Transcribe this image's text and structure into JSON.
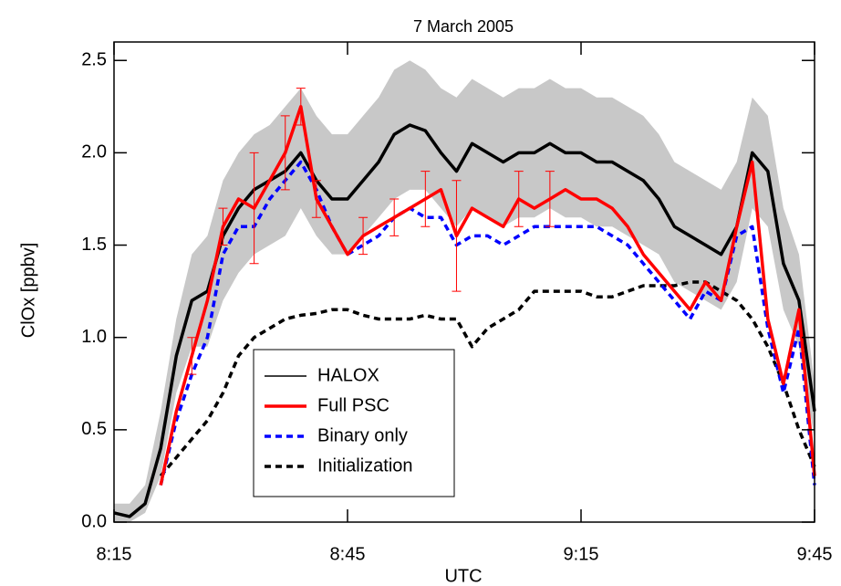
{
  "chart_data": {
    "type": "line",
    "title": "7 March 2005",
    "x_label": "UTC",
    "y_label": "ClOx [ppbv]",
    "x": [
      495,
      497,
      499,
      501,
      503,
      505,
      507,
      509,
      511,
      513,
      515,
      517,
      519,
      521,
      523,
      525,
      527,
      529,
      531,
      533,
      535,
      537,
      539,
      541,
      543,
      545,
      547,
      549,
      551,
      553,
      555,
      557,
      559,
      561,
      563,
      565,
      567,
      569,
      571,
      573,
      575,
      577,
      579,
      581,
      583,
      585
    ],
    "xlim": [
      495,
      585
    ],
    "xticks": [
      {
        "value": 495,
        "label": "8:15"
      },
      {
        "value": 525,
        "label": "8:45"
      },
      {
        "value": 555,
        "label": "9:15"
      },
      {
        "value": 585,
        "label": "9:45"
      }
    ],
    "ylim": [
      0,
      2.6
    ],
    "yticks": [
      {
        "value": 0,
        "label": "0.0"
      },
      0.5,
      {
        "value": 1,
        "label": "1.0"
      },
      1.5,
      {
        "value": 2,
        "label": "2.0"
      },
      2.5
    ],
    "band": {
      "color": "#c8c8c8",
      "upper": [
        0.1,
        0.1,
        0.2,
        0.6,
        1.1,
        1.45,
        1.55,
        1.85,
        2.0,
        2.1,
        2.15,
        2.25,
        2.35,
        2.2,
        2.1,
        2.1,
        2.2,
        2.3,
        2.45,
        2.5,
        2.45,
        2.35,
        2.3,
        2.4,
        2.35,
        2.3,
        2.35,
        2.35,
        2.4,
        2.35,
        2.35,
        2.3,
        2.3,
        2.25,
        2.2,
        2.1,
        1.95,
        1.9,
        1.85,
        1.8,
        1.95,
        2.3,
        2.2,
        1.7,
        1.45,
        0.75
      ],
      "lower": [
        0,
        0,
        0.05,
        0.25,
        0.7,
        0.95,
        0.95,
        1.2,
        1.35,
        1.45,
        1.5,
        1.55,
        1.7,
        1.55,
        1.45,
        1.45,
        1.55,
        1.65,
        1.75,
        1.8,
        1.8,
        1.7,
        1.6,
        1.7,
        1.65,
        1.6,
        1.65,
        1.65,
        1.7,
        1.65,
        1.65,
        1.6,
        1.6,
        1.55,
        1.5,
        1.45,
        1.3,
        1.25,
        1.2,
        1.15,
        1.3,
        1.7,
        1.6,
        1.15,
        0.95,
        0.45
      ]
    },
    "series": [
      {
        "name": "HALOX",
        "color": "#000000",
        "dash": false,
        "values": [
          0.05,
          0.03,
          0.1,
          0.4,
          0.9,
          1.2,
          1.25,
          1.55,
          1.7,
          1.8,
          1.85,
          1.9,
          2.0,
          1.85,
          1.75,
          1.75,
          1.85,
          1.95,
          2.1,
          2.15,
          2.12,
          2.0,
          1.9,
          2.05,
          2.0,
          1.95,
          2.0,
          2.0,
          2.05,
          2.0,
          2.0,
          1.95,
          1.95,
          1.9,
          1.85,
          1.75,
          1.6,
          1.55,
          1.5,
          1.45,
          1.6,
          2.0,
          1.9,
          1.4,
          1.2,
          0.6
        ]
      },
      {
        "name": "Full PSC",
        "color": "#ff0000",
        "dash": false,
        "values": [
          null,
          null,
          null,
          0.2,
          0.6,
          0.9,
          1.2,
          1.6,
          1.75,
          1.7,
          1.85,
          2.0,
          2.25,
          1.75,
          1.6,
          1.45,
          1.55,
          1.6,
          1.65,
          1.7,
          1.75,
          1.8,
          1.55,
          1.7,
          1.65,
          1.6,
          1.75,
          1.7,
          1.75,
          1.8,
          1.75,
          1.75,
          1.7,
          1.6,
          1.45,
          1.35,
          1.25,
          1.15,
          1.3,
          1.2,
          1.6,
          1.95,
          1.1,
          0.75,
          1.15,
          0.25
        ],
        "errors": [
          null,
          null,
          null,
          null,
          null,
          0.1,
          null,
          0.1,
          null,
          0.3,
          null,
          0.2,
          0.1,
          0.1,
          null,
          null,
          0.1,
          null,
          0.1,
          null,
          0.15,
          null,
          0.3,
          null,
          null,
          null,
          0.15,
          null,
          0.15,
          null,
          null,
          null,
          null,
          null,
          null,
          null,
          null,
          null,
          null,
          null,
          null,
          null,
          null,
          null,
          null,
          null
        ]
      },
      {
        "name": "Binary only",
        "color": "#0000ff",
        "dash": true,
        "values": [
          null,
          null,
          null,
          0.2,
          0.55,
          0.8,
          1.0,
          1.45,
          1.6,
          1.6,
          1.75,
          1.85,
          1.95,
          1.8,
          1.6,
          1.45,
          1.5,
          1.55,
          1.65,
          1.7,
          1.65,
          1.65,
          1.5,
          1.55,
          1.55,
          1.5,
          1.55,
          1.6,
          1.6,
          1.6,
          1.6,
          1.6,
          1.55,
          1.5,
          1.4,
          1.3,
          1.2,
          1.1,
          1.25,
          1.2,
          1.55,
          1.6,
          1.05,
          0.7,
          1.05,
          0.2
        ]
      },
      {
        "name": "Initialization",
        "color": "#000000",
        "dash": true,
        "values": [
          null,
          null,
          null,
          0.25,
          0.35,
          0.45,
          0.55,
          0.7,
          0.9,
          1.0,
          1.05,
          1.1,
          1.12,
          1.13,
          1.15,
          1.15,
          1.12,
          1.1,
          1.1,
          1.1,
          1.12,
          1.1,
          1.1,
          0.95,
          1.05,
          1.1,
          1.15,
          1.25,
          1.25,
          1.25,
          1.25,
          1.22,
          1.22,
          1.25,
          1.28,
          1.28,
          1.28,
          1.3,
          1.3,
          1.25,
          1.2,
          1.1,
          0.95,
          0.75,
          0.5,
          0.3
        ]
      }
    ]
  }
}
